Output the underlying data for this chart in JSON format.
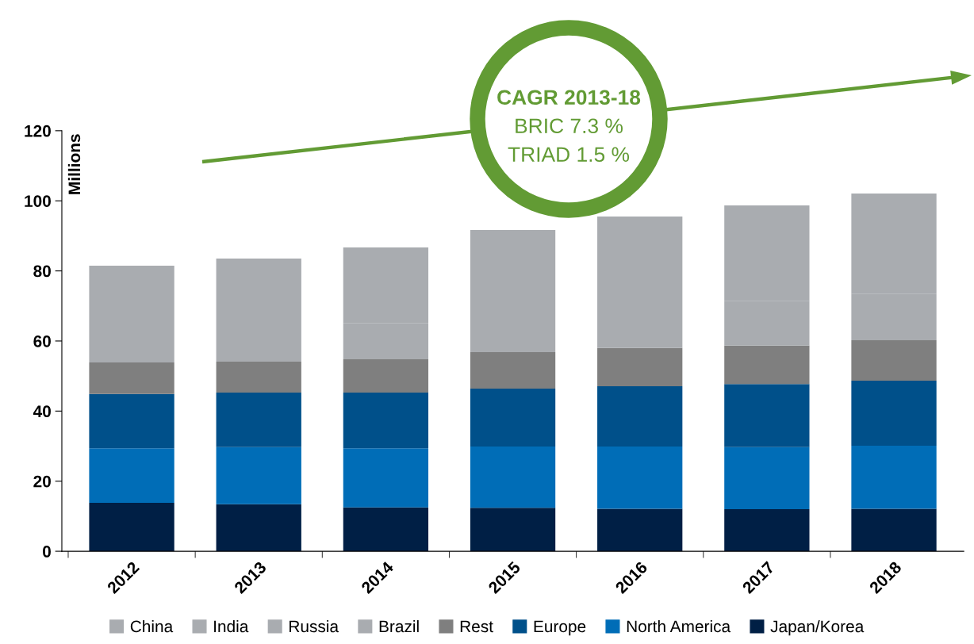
{
  "chart_data": {
    "type": "bar",
    "stacked": true,
    "ylabel": "Millions",
    "categories": [
      "2012",
      "2013",
      "2014",
      "2015",
      "2016",
      "2017",
      "2018"
    ],
    "series": [
      {
        "name": "Japan/Korea",
        "color": "#001f45",
        "values": [
          13.8,
          13.4,
          12.5,
          12.4,
          12.1,
          12.0,
          12.1
        ]
      },
      {
        "name": "North America",
        "color": "#006db7",
        "values": [
          15.6,
          16.3,
          16.9,
          17.5,
          17.8,
          17.7,
          18.0
        ]
      },
      {
        "name": "Europe",
        "color": "#00508a",
        "values": [
          15.5,
          15.6,
          15.9,
          16.5,
          17.2,
          18.0,
          18.6
        ]
      },
      {
        "name": "Rest",
        "color": "#7f7f7f",
        "values": [
          9.0,
          8.8,
          9.5,
          10.4,
          10.9,
          11.0,
          11.5
        ]
      },
      {
        "name": "Brazil",
        "color": "#a9acb0",
        "values": [
          9.5,
          9.3,
          10.2,
          11.1,
          11.7,
          12.8,
          13.2
        ]
      },
      {
        "name": "Russia",
        "color": "#a9acb0",
        "values": [
          null,
          null,
          null,
          null,
          null,
          null,
          null
        ]
      },
      {
        "name": "India",
        "color": "#a9acb0",
        "values": [
          null,
          null,
          null,
          null,
          null,
          null,
          null
        ]
      },
      {
        "name": "China",
        "color": "#a9acb0",
        "values": [
          18.1,
          20.1,
          21.7,
          23.8,
          25.8,
          27.2,
          28.7
        ]
      }
    ],
    "ylim": [
      0,
      120
    ],
    "yticks": [
      0,
      20,
      40,
      60,
      80,
      100,
      120
    ],
    "grid": false,
    "legend": "bottom",
    "annotations": [
      "CAGR 2013-18",
      "BRIC 7.3 %",
      "TRIAD 1.5 %"
    ]
  }
}
